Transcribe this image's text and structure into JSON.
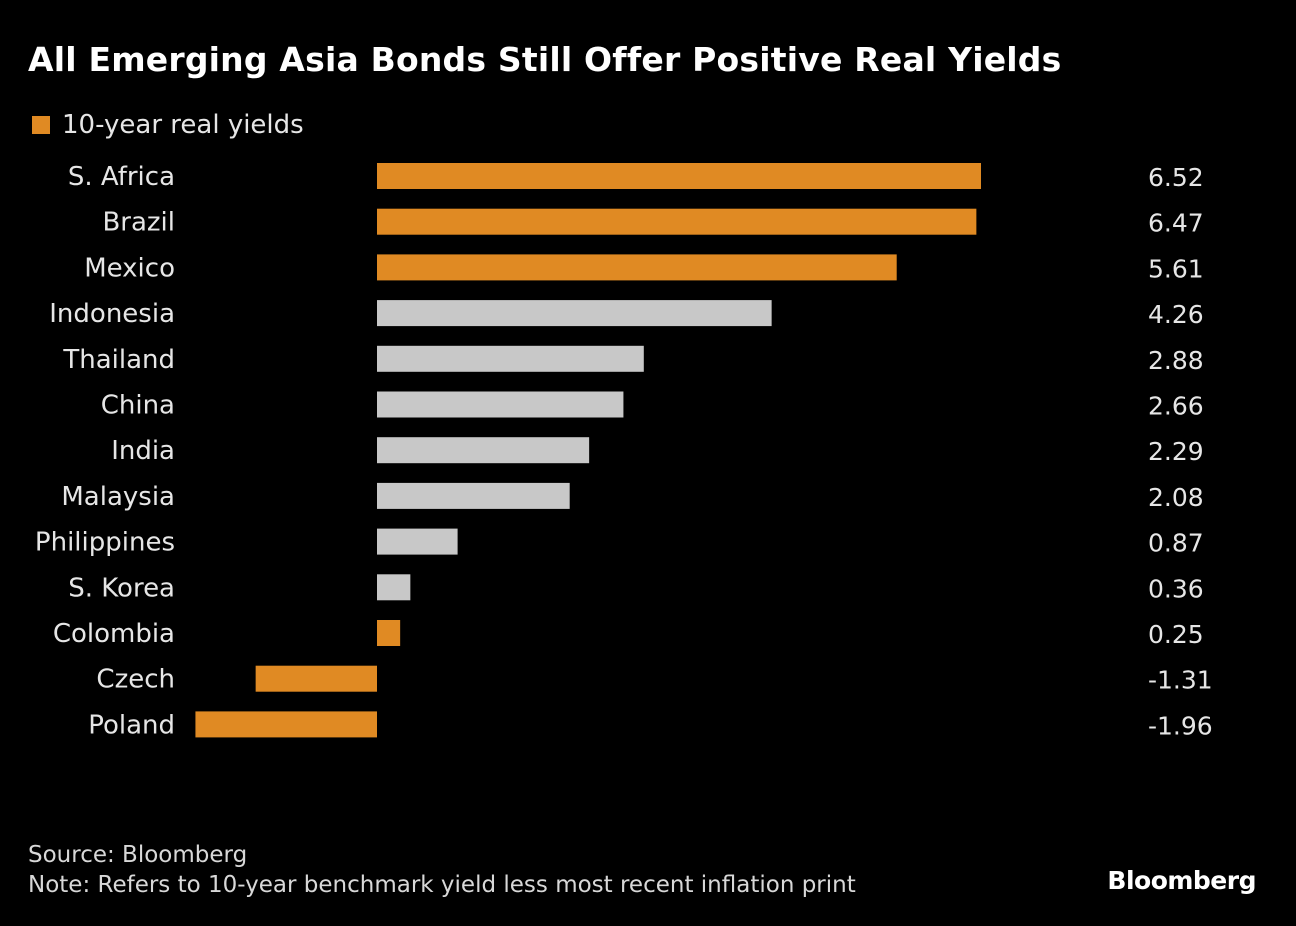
{
  "chart_data": {
    "type": "bar",
    "orientation": "horizontal",
    "title": "All Emerging Asia Bonds Still Offer Positive Real Yields",
    "legend": [
      {
        "label": "10-year real yields",
        "color": "#e08a23"
      }
    ],
    "legend_position": "top-left",
    "categories": [
      "S. Africa",
      "Brazil",
      "Mexico",
      "Indonesia",
      "Thailand",
      "China",
      "India",
      "Malaysia",
      "Philippines",
      "S. Korea",
      "Colombia",
      "Czech",
      "Poland"
    ],
    "values": [
      6.52,
      6.47,
      5.61,
      4.26,
      2.88,
      2.66,
      2.29,
      2.08,
      0.87,
      0.36,
      0.25,
      -1.31,
      -1.96
    ],
    "value_labels": [
      "6.52",
      "6.47",
      "5.61",
      "4.26",
      "2.88",
      "2.66",
      "2.29",
      "2.08",
      "0.87",
      "0.36",
      "0.25",
      "-1.31",
      "-1.96"
    ],
    "bar_colors": [
      "#e08a23",
      "#e08a23",
      "#e08a23",
      "#c8c8c8",
      "#c8c8c8",
      "#c8c8c8",
      "#c8c8c8",
      "#c8c8c8",
      "#c8c8c8",
      "#c8c8c8",
      "#e08a23",
      "#e08a23",
      "#e08a23"
    ],
    "xlim": [
      -1.96,
      6.52
    ],
    "grid": false,
    "source": "Source: Bloomberg",
    "note": "Note: Refers to 10-year benchmark yield less most recent inflation print"
  },
  "branding": {
    "logo": "Bloomberg"
  }
}
